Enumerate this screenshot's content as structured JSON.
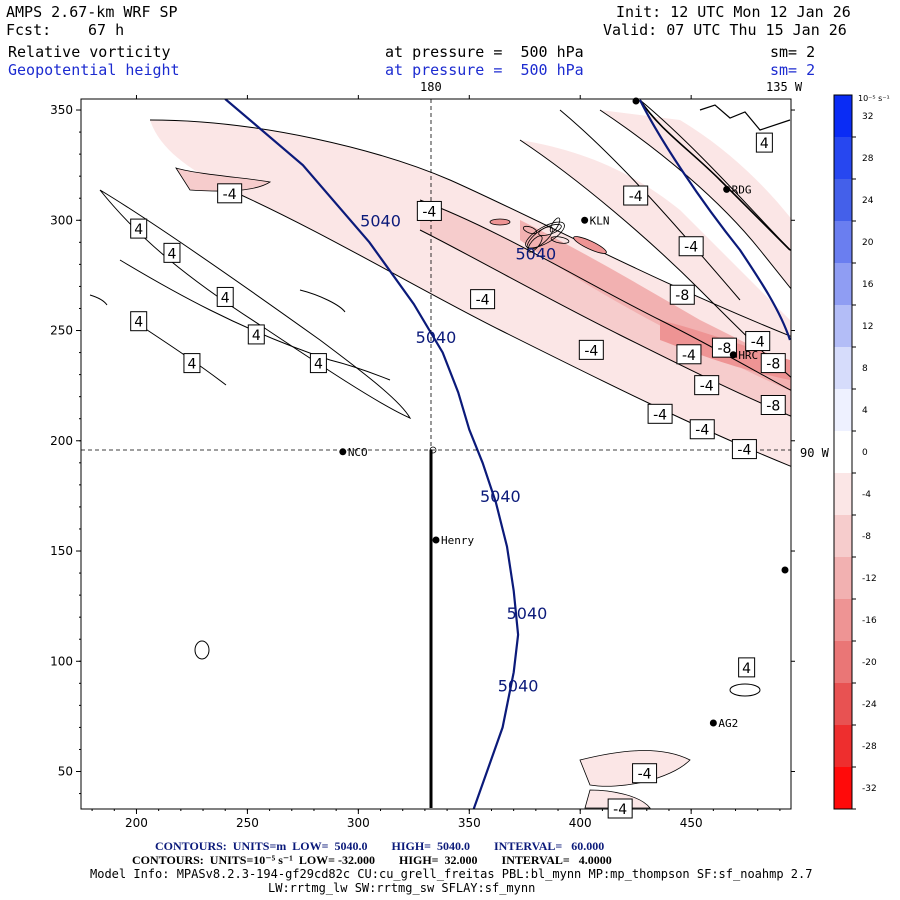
{
  "header": {
    "model": "AMPS 2.67-km WRF SP",
    "forecast_label": "Fcst:",
    "forecast_value": "67 h",
    "init": "Init: 12 UTC Mon 12 Jan 26",
    "valid": "Valid: 07 UTC Thu 15 Jan 26",
    "field1_name": "Relative vorticity",
    "field1_level": "at pressure =  500 hPa",
    "field1_sm": "sm= 2",
    "field2_name": "Geopotential height",
    "field2_level": "at pressure =  500 hPa",
    "field2_sm": "sm= 2"
  },
  "map_labels": {
    "lon_180": "180",
    "lon_135w": "135 W",
    "lon_90w": "90 W"
  },
  "stations": [
    {
      "name": "RDG",
      "x": 466,
      "y": 314
    },
    {
      "name": "KLN",
      "x": 402,
      "y": 300
    },
    {
      "name": "HRC",
      "x": 469,
      "y": 239
    },
    {
      "name": "NCO",
      "x": 293,
      "y": 195
    },
    {
      "name": "Henry",
      "x": 335,
      "y": 155
    },
    {
      "name": "AG2",
      "x": 460,
      "y": 72
    }
  ],
  "colorbar": {
    "unit": "10⁻⁵ s⁻¹",
    "ticks": [
      "32",
      "28",
      "24",
      "20",
      "16",
      "12",
      "8",
      "4",
      "0",
      "-4",
      "-8",
      "-12",
      "-16",
      "-20",
      "-24",
      "-28",
      "-32"
    ],
    "colors": [
      "#0a2cf5",
      "#2747f0",
      "#4460ea",
      "#6a7ef0",
      "#8f9df3",
      "#b3bdf7",
      "#d6dcfb",
      "#eef1ff",
      "#ffffff",
      "#fbe6e6",
      "#f6cccc",
      "#f2b1b1",
      "#ee9494",
      "#ea7676",
      "#e85252",
      "#ee2e2e",
      "#ff0a0a"
    ]
  },
  "chart_data": {
    "type": "contour",
    "x_ticks": [
      200,
      250,
      300,
      350,
      400,
      450
    ],
    "y_ticks": [
      50,
      100,
      150,
      200,
      250,
      300,
      350
    ],
    "xlim": [
      175,
      495
    ],
    "ylim": [
      33,
      355
    ],
    "height_contours": [
      {
        "label": "5040",
        "points": [
          [
            240,
            355
          ],
          [
            275,
            325
          ],
          [
            305,
            290
          ],
          [
            325,
            262
          ],
          [
            338,
            240
          ],
          [
            345,
            222
          ],
          [
            350,
            205
          ],
          [
            356,
            190
          ],
          [
            362,
            172
          ],
          [
            367,
            152
          ],
          [
            370,
            132
          ],
          [
            372,
            112
          ],
          [
            370,
            95
          ],
          [
            365,
            70
          ],
          [
            358,
            50
          ],
          [
            352,
            33
          ]
        ]
      }
    ],
    "height_labels": [
      {
        "text": "5040",
        "x": 310,
        "y": 300
      },
      {
        "text": "5040",
        "x": 335,
        "y": 247
      },
      {
        "text": "5040",
        "x": 364,
        "y": 175
      },
      {
        "text": "5040",
        "x": 376,
        "y": 122
      },
      {
        "text": "5040",
        "x": 372,
        "y": 89
      },
      {
        "text": "5040",
        "x": 380,
        "y": 285
      }
    ],
    "vorticity_labels": [
      {
        "text": "-4",
        "x": 242,
        "y": 312
      },
      {
        "text": "-4",
        "x": 332,
        "y": 304
      },
      {
        "text": "-4",
        "x": 425,
        "y": 311
      },
      {
        "text": "-4",
        "x": 450,
        "y": 288
      },
      {
        "text": "-4",
        "x": 356,
        "y": 264
      },
      {
        "text": "-4",
        "x": 405,
        "y": 241
      },
      {
        "text": "-8",
        "x": 446,
        "y": 266
      },
      {
        "text": "-4",
        "x": 480,
        "y": 245
      },
      {
        "text": "-8",
        "x": 465,
        "y": 242
      },
      {
        "text": "-4",
        "x": 449,
        "y": 239
      },
      {
        "text": "-8",
        "x": 487,
        "y": 235
      },
      {
        "text": "-4",
        "x": 457,
        "y": 225
      },
      {
        "text": "-4",
        "x": 436,
        "y": 212
      },
      {
        "text": "-8",
        "x": 487,
        "y": 216
      },
      {
        "text": "-4",
        "x": 455,
        "y": 205
      },
      {
        "text": "-4",
        "x": 474,
        "y": 196
      },
      {
        "text": "-4",
        "x": 429,
        "y": 49
      },
      {
        "text": "-4",
        "x": 418,
        "y": 33
      },
      {
        "text": "4",
        "x": 201,
        "y": 296
      },
      {
        "text": "4",
        "x": 216,
        "y": 285
      },
      {
        "text": "4",
        "x": 240,
        "y": 265
      },
      {
        "text": "4",
        "x": 201,
        "y": 254
      },
      {
        "text": "4",
        "x": 254,
        "y": 248
      },
      {
        "text": "4",
        "x": 282,
        "y": 235
      },
      {
        "text": "4",
        "x": 225,
        "y": 235
      },
      {
        "text": "4",
        "x": 483,
        "y": 335
      },
      {
        "text": "4",
        "x": 475,
        "y": 97
      }
    ],
    "crosshair": {
      "lon180_x": 334,
      "lat90w_y": 196
    }
  },
  "footer": {
    "line1": "CONTOURS:  UNITS=m  LOW=  5040.0        HIGH=  5040.0        INTERVAL=   60.000",
    "line2": "CONTOURS:  UNITS=10⁻⁵ s⁻¹  LOW= -32.000        HIGH=  32.000        INTERVAL=   4.0000",
    "line3": "Model Info: MPASv8.2.3-194-gf29cd82c CU:cu_grell_freitas PBL:bl_mynn MP:mp_thompson SF:sf_noahmp 2.7",
    "line4": "LW:rrtmg_lw SW:rrtmg_sw SFLAY:sf_mynn"
  }
}
